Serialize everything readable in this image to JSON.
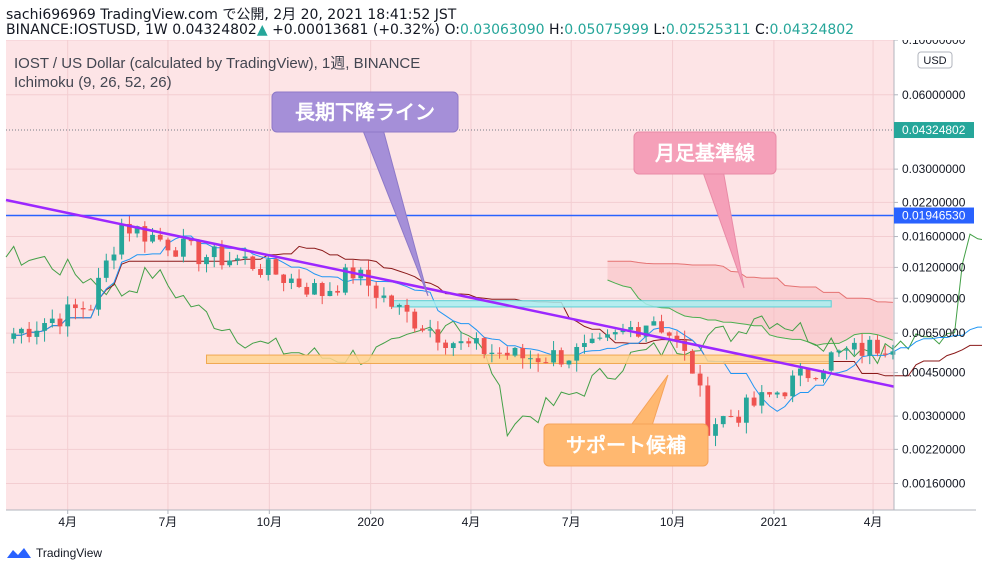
{
  "header": {
    "line1": "sachi696969 TradingView.com で公開, 2月 20, 2021 18:41:52 JST",
    "symbol": "BINANCE:IOSTUSD, 1W",
    "last": "0.04324802",
    "change_arrow": "▲",
    "change": "+0.00013681 (+0.32%)",
    "o_label": "O:",
    "o_value": "0.03063090",
    "h_label": "H:",
    "h_value": "0.05075999",
    "l_label": "L:",
    "l_value": "0.02525311",
    "c_label": "C:",
    "c_value": "0.04324802"
  },
  "legend": {
    "line1": "IOST / US Dollar (calculated by TradingView), 1週, BINANCE",
    "line2": "Ichimoku (9, 26, 52, 26)"
  },
  "currency_button": "USD",
  "price_tags": {
    "last": "0.04324802",
    "hline": "0.01946530"
  },
  "annotations": {
    "trendline_label": "長期下降ライン",
    "monthly_base_label": "月足基準線",
    "support_label": "サポート候補"
  },
  "footer": {
    "brand": "TradingView"
  },
  "colors": {
    "up": "#26a69a",
    "down": "#ef5350",
    "hline": "#2962ff",
    "trendline": "#9c27ff",
    "callout_purple": "#a58fd8",
    "callout_pink": "#f5a0b9",
    "callout_orange": "#ffb870",
    "support_box": "#ffd590",
    "resistance_box": "#a8eef0",
    "cloud_bg": "#fde4e6",
    "span_a": "#4caf50",
    "span_b": "#e57373",
    "tenkan": "#2196f3",
    "kijun": "#8b1a1a"
  },
  "chart_data": {
    "type": "candlestick",
    "scale": "log",
    "y_range": [
      0.00125,
      0.1
    ],
    "y_ticks": [
      {
        "value": 0.1,
        "label": "0.10000000"
      },
      {
        "value": 0.06,
        "label": "0.06000000"
      },
      {
        "value": 0.03,
        "label": "0.03000000"
      },
      {
        "value": 0.022,
        "label": "0.02200000"
      },
      {
        "value": 0.016,
        "label": "0.01600000"
      },
      {
        "value": 0.012,
        "label": "0.01200000"
      },
      {
        "value": 0.009,
        "label": "0.00900000"
      },
      {
        "value": 0.0065,
        "label": "0.00650000"
      },
      {
        "value": 0.0045,
        "label": "0.00450000"
      },
      {
        "value": 0.003,
        "label": "0.00300000"
      },
      {
        "value": 0.0022,
        "label": "0.00220000"
      },
      {
        "value": 0.0016,
        "label": "0.00160000"
      }
    ],
    "x_ticks": [
      {
        "date": "2019-04-01",
        "label": "4月"
      },
      {
        "date": "2019-07-01",
        "label": "7月"
      },
      {
        "date": "2019-10-01",
        "label": "10月"
      },
      {
        "date": "2020-01-01",
        "label": "2020"
      },
      {
        "date": "2020-04-01",
        "label": "4月"
      },
      {
        "date": "2020-07-01",
        "label": "7月"
      },
      {
        "date": "2020-10-01",
        "label": "10月"
      },
      {
        "date": "2021-01-01",
        "label": "2021"
      },
      {
        "date": "2021-04-01",
        "label": "4月"
      }
    ],
    "x_range": [
      "2019-02-04",
      "2021-04-20"
    ],
    "first_candle": "2019-02-11",
    "close_path": [
      [
        0,
        0.0065
      ],
      [
        10,
        0.0085
      ],
      [
        14,
        0.018
      ],
      [
        24,
        0.0135
      ],
      [
        30,
        0.0128
      ],
      [
        40,
        0.0095
      ],
      [
        44,
        0.0115
      ],
      [
        50,
        0.008
      ],
      [
        58,
        0.0058
      ],
      [
        66,
        0.0052
      ],
      [
        72,
        0.0053
      ],
      [
        76,
        0.0057
      ],
      [
        80,
        0.0068
      ],
      [
        83,
        0.0075
      ],
      [
        85,
        0.0065
      ],
      [
        88,
        0.0047
      ],
      [
        90,
        0.0028
      ],
      [
        94,
        0.0031
      ],
      [
        98,
        0.0036
      ],
      [
        102,
        0.0043
      ],
      [
        106,
        0.0052
      ],
      [
        112,
        0.0058
      ],
      [
        116,
        0.0063
      ],
      [
        120,
        0.0066
      ],
      [
        122,
        0.0078
      ],
      [
        126,
        0.0072
      ],
      [
        130,
        0.0063
      ],
      [
        134,
        0.0058
      ],
      [
        138,
        0.0055
      ],
      [
        143,
        0.0059
      ],
      [
        146,
        0.0062
      ],
      [
        148,
        0.0072
      ],
      [
        150,
        0.018
      ],
      [
        153,
        0.016
      ],
      [
        155,
        0.0175
      ],
      [
        157,
        0.021
      ],
      [
        159,
        0.0306
      ],
      [
        160,
        0.0432
      ]
    ],
    "horizontal_line": 0.0194653,
    "trendline": {
      "start": [
        "2019-02-04",
        0.0225
      ],
      "end": [
        "2021-04-20",
        0.00395
      ]
    },
    "support_zone": {
      "from": "2019-08-05",
      "to": "2021-02-22",
      "low": 0.0049,
      "high": 0.0053
    },
    "resistance_zone": {
      "from": "2020-01-20",
      "to": "2021-02-22",
      "low": 0.0083,
      "high": 0.0088
    },
    "ichimoku": {
      "tenkan": 9,
      "kijun": 26,
      "senkou_b": 52,
      "displacement": 26
    }
  }
}
